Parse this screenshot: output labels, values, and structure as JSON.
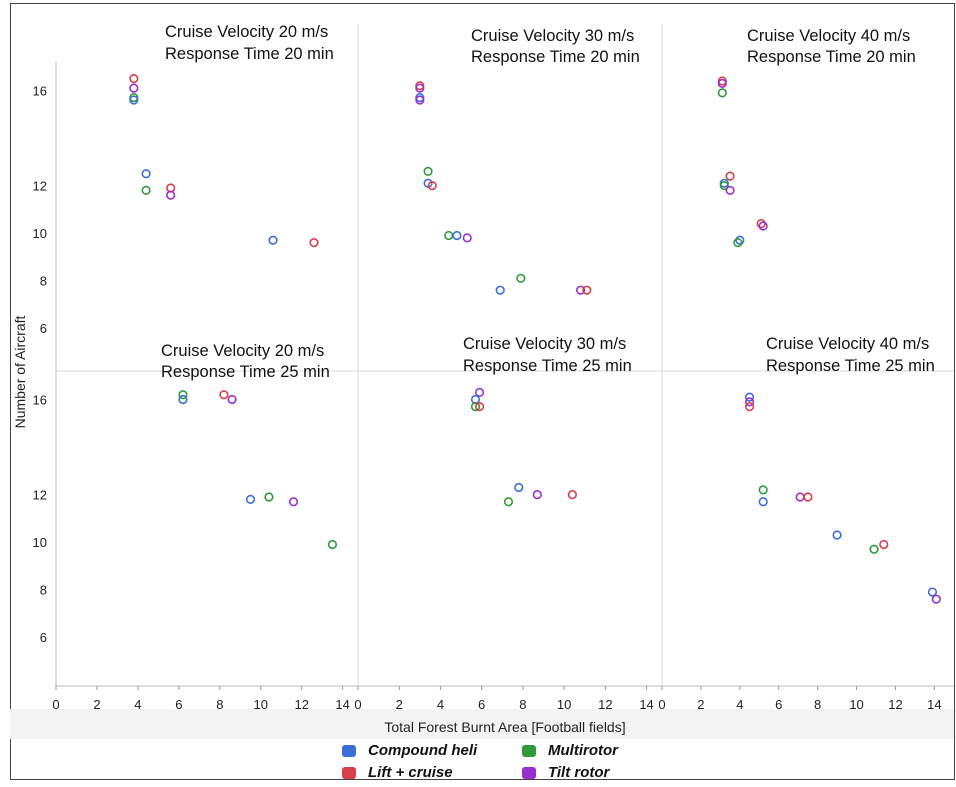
{
  "chart_data": {
    "type": "scatter",
    "xlabel": "Total Forest Burnt Area [Football fields]",
    "ylabel": "Number of Aircraft",
    "xlim": [
      0,
      14.7
    ],
    "ylim": [
      4.2,
      17.2
    ],
    "x_ticks": [
      "0",
      "2",
      "4",
      "6",
      "8",
      "10",
      "12",
      "14"
    ],
    "y_ticks": [
      "6",
      "8",
      "10",
      "12",
      "16"
    ],
    "grid": false,
    "legend_position": "bottom-center",
    "series_colors": {
      "Compound heli": "#3b6fd8",
      "Lift + cruise": "#d8404a",
      "Multirotor": "#2e9b3a",
      "Tilt rotor": "#9a2fd0"
    },
    "series": [
      {
        "name": "Compound heli",
        "color": "#3b6fd8"
      },
      {
        "name": "Lift + cruise",
        "color": "#d8404a"
      },
      {
        "name": "Multirotor",
        "color": "#2e9b3a"
      },
      {
        "name": "Tilt rotor",
        "color": "#9a2fd0"
      }
    ],
    "panels": [
      {
        "title_line1": "Cruise Velocity 20 m/s",
        "title_line2": "Response Time 20 min",
        "points": [
          {
            "series": "Lift + cruise",
            "x": 3.8,
            "y": 16.5
          },
          {
            "series": "Tilt rotor",
            "x": 3.8,
            "y": 16.1
          },
          {
            "series": "Multirotor",
            "x": 3.8,
            "y": 15.7
          },
          {
            "series": "Compound heli",
            "x": 3.8,
            "y": 15.6
          },
          {
            "series": "Compound heli",
            "x": 4.4,
            "y": 12.5
          },
          {
            "series": "Multirotor",
            "x": 4.4,
            "y": 11.8
          },
          {
            "series": "Lift + cruise",
            "x": 5.6,
            "y": 11.9
          },
          {
            "series": "Tilt rotor",
            "x": 5.6,
            "y": 11.6
          },
          {
            "series": "Compound heli",
            "x": 10.6,
            "y": 9.7
          },
          {
            "series": "Lift + cruise",
            "x": 12.6,
            "y": 9.6
          }
        ]
      },
      {
        "title_line1": "Cruise Velocity 30 m/s",
        "title_line2": "Response Time 20 min",
        "points": [
          {
            "series": "Lift + cruise",
            "x": 3.0,
            "y": 16.2
          },
          {
            "series": "Tilt rotor",
            "x": 3.0,
            "y": 16.1
          },
          {
            "series": "Compound heli",
            "x": 3.0,
            "y": 15.7
          },
          {
            "series": "Tilt rotor",
            "x": 3.0,
            "y": 15.6
          },
          {
            "series": "Multirotor",
            "x": 3.4,
            "y": 12.6
          },
          {
            "series": "Compound heli",
            "x": 3.4,
            "y": 12.1
          },
          {
            "series": "Lift + cruise",
            "x": 3.6,
            "y": 12.0
          },
          {
            "series": "Multirotor",
            "x": 4.4,
            "y": 9.9
          },
          {
            "series": "Compound heli",
            "x": 4.8,
            "y": 9.9
          },
          {
            "series": "Tilt rotor",
            "x": 5.3,
            "y": 9.8
          },
          {
            "series": "Compound heli",
            "x": 6.9,
            "y": 7.6
          },
          {
            "series": "Multirotor",
            "x": 7.9,
            "y": 8.1
          },
          {
            "series": "Tilt rotor",
            "x": 10.8,
            "y": 7.6
          },
          {
            "series": "Lift + cruise",
            "x": 11.1,
            "y": 7.6
          }
        ]
      },
      {
        "title_line1": "Cruise Velocity 40 m/s",
        "title_line2": "Response Time 20 min",
        "points": [
          {
            "series": "Lift + cruise",
            "x": 3.1,
            "y": 16.4
          },
          {
            "series": "Tilt rotor",
            "x": 3.1,
            "y": 16.3
          },
          {
            "series": "Multirotor",
            "x": 3.1,
            "y": 15.9
          },
          {
            "series": "Lift + cruise",
            "x": 3.5,
            "y": 12.4
          },
          {
            "series": "Compound heli",
            "x": 3.2,
            "y": 12.1
          },
          {
            "series": "Multirotor",
            "x": 3.2,
            "y": 12.0
          },
          {
            "series": "Tilt rotor",
            "x": 3.5,
            "y": 11.8
          },
          {
            "series": "Compound heli",
            "x": 4.0,
            "y": 9.7
          },
          {
            "series": "Multirotor",
            "x": 3.9,
            "y": 9.6
          },
          {
            "series": "Lift + cruise",
            "x": 5.1,
            "y": 10.4
          },
          {
            "series": "Tilt rotor",
            "x": 5.2,
            "y": 10.3
          }
        ]
      },
      {
        "title_line1": "Cruise Velocity 20 m/s",
        "title_line2": "Response Time 25 min",
        "points": [
          {
            "series": "Multirotor",
            "x": 6.2,
            "y": 16.2
          },
          {
            "series": "Compound heli",
            "x": 6.2,
            "y": 16.0
          },
          {
            "series": "Lift + cruise",
            "x": 8.2,
            "y": 16.2
          },
          {
            "series": "Tilt rotor",
            "x": 8.6,
            "y": 16.0
          },
          {
            "series": "Compound heli",
            "x": 9.5,
            "y": 11.8
          },
          {
            "series": "Multirotor",
            "x": 10.4,
            "y": 11.9
          },
          {
            "series": "Tilt rotor",
            "x": 11.6,
            "y": 11.7
          },
          {
            "series": "Multirotor",
            "x": 13.5,
            "y": 9.9
          }
        ]
      },
      {
        "title_line1": "Cruise Velocity 30 m/s",
        "title_line2": "Response Time 25 min",
        "points": [
          {
            "series": "Tilt rotor",
            "x": 5.9,
            "y": 16.3
          },
          {
            "series": "Compound heli",
            "x": 5.7,
            "y": 16.0
          },
          {
            "series": "Multirotor",
            "x": 5.7,
            "y": 15.7
          },
          {
            "series": "Lift + cruise",
            "x": 5.9,
            "y": 15.7
          },
          {
            "series": "Compound heli",
            "x": 7.8,
            "y": 12.3
          },
          {
            "series": "Multirotor",
            "x": 7.3,
            "y": 11.7
          },
          {
            "series": "Tilt rotor",
            "x": 8.7,
            "y": 12.0
          },
          {
            "series": "Lift + cruise",
            "x": 10.4,
            "y": 12.0
          }
        ]
      },
      {
        "title_line1": "Cruise Velocity 40 m/s",
        "title_line2": "Response Time 25 min",
        "points": [
          {
            "series": "Compound heli",
            "x": 4.5,
            "y": 16.1
          },
          {
            "series": "Tilt rotor",
            "x": 4.5,
            "y": 15.9
          },
          {
            "series": "Lift + cruise",
            "x": 4.5,
            "y": 15.7
          },
          {
            "series": "Multirotor",
            "x": 5.2,
            "y": 12.2
          },
          {
            "series": "Compound heli",
            "x": 5.2,
            "y": 11.7
          },
          {
            "series": "Tilt rotor",
            "x": 7.1,
            "y": 11.9
          },
          {
            "series": "Lift + cruise",
            "x": 7.5,
            "y": 11.9
          },
          {
            "series": "Compound heli",
            "x": 9.0,
            "y": 10.3
          },
          {
            "series": "Multirotor",
            "x": 10.9,
            "y": 9.7
          },
          {
            "series": "Lift + cruise",
            "x": 11.4,
            "y": 9.9
          },
          {
            "series": "Compound heli",
            "x": 13.9,
            "y": 7.9
          },
          {
            "series": "Tilt rotor",
            "x": 14.1,
            "y": 7.6
          }
        ]
      }
    ]
  }
}
